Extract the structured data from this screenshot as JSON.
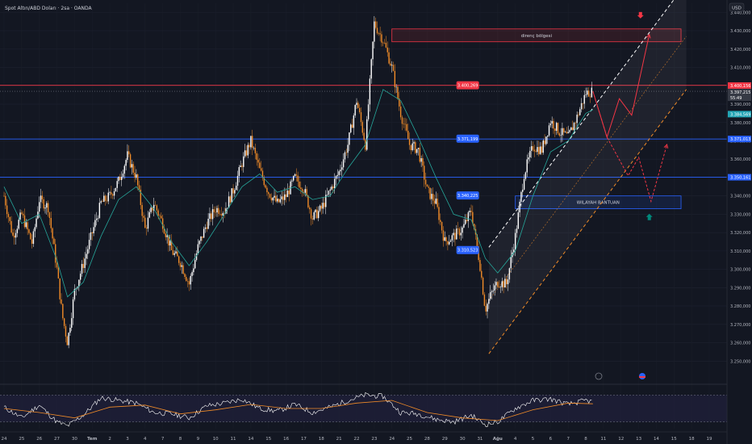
{
  "chart_data": {
    "type": "candlestick",
    "title": "Spot Altın/ABD Doları · 2sa · OANDA",
    "currency": "USD",
    "ylim": [
      3240,
      3445
    ],
    "y_ticks": [
      3250,
      3260,
      3270,
      3280,
      3290,
      3300,
      3310,
      3320,
      3330,
      3340,
      3350,
      3360,
      3370,
      3380,
      3390,
      3400,
      3410,
      3420,
      3430,
      3440
    ],
    "y_tick_labels": [
      "3.250,000",
      "3.260,000",
      "3.270,000",
      "3.280,000",
      "3.290,000",
      "3.300,000",
      "3.310,000",
      "3.320,000",
      "3.330,000",
      "3.340,000",
      "3.350,000",
      "3.360,000",
      "3.370,000",
      "3.380,000",
      "3.390,000",
      "3.400,000",
      "3.410,000",
      "3.420,000",
      "3.430,000",
      "3.440,000"
    ],
    "x_tick_labels": [
      "24",
      "25",
      "26",
      "27",
      "30",
      "Tem",
      "2",
      "3",
      "4",
      "7",
      "8",
      "9",
      "10",
      "11",
      "14",
      "15",
      "16",
      "17",
      "18",
      "21",
      "22",
      "23",
      "24",
      "25",
      "28",
      "29",
      "30",
      "31",
      "Ağu",
      "4",
      "5",
      "6",
      "7",
      "8",
      "11",
      "12",
      "13",
      "14",
      "15",
      "18",
      "19"
    ],
    "x_ticks_day_index": [
      0,
      1,
      2,
      3,
      4,
      5,
      6,
      7,
      8,
      9,
      10,
      11,
      12,
      13,
      14,
      15,
      16,
      17,
      18,
      19,
      20,
      21,
      22,
      23,
      24,
      25,
      26,
      27,
      28,
      29,
      30,
      31,
      32,
      33,
      34,
      35,
      36,
      37,
      38,
      39,
      40
    ],
    "last_real_day_index": 33.4,
    "price_path": [
      [
        0,
        3340
      ],
      [
        0.5,
        3318
      ],
      [
        1,
        3330
      ],
      [
        1.6,
        3314
      ],
      [
        2,
        3338
      ],
      [
        2.5,
        3334
      ],
      [
        3,
        3300
      ],
      [
        3.3,
        3275
      ],
      [
        3.6,
        3260
      ],
      [
        4,
        3288
      ],
      [
        4.5,
        3303
      ],
      [
        5,
        3320
      ],
      [
        5.5,
        3336
      ],
      [
        6,
        3340
      ],
      [
        6.5,
        3348
      ],
      [
        7,
        3362
      ],
      [
        7.5,
        3350
      ],
      [
        8,
        3322
      ],
      [
        8.5,
        3336
      ],
      [
        9,
        3325
      ],
      [
        9.5,
        3310
      ],
      [
        10,
        3304
      ],
      [
        10.5,
        3292
      ],
      [
        11,
        3312
      ],
      [
        11.5,
        3325
      ],
      [
        12,
        3333
      ],
      [
        12.5,
        3332
      ],
      [
        13,
        3343
      ],
      [
        13.5,
        3358
      ],
      [
        14,
        3370
      ],
      [
        14.5,
        3354
      ],
      [
        15,
        3342
      ],
      [
        15.5,
        3336
      ],
      [
        16,
        3340
      ],
      [
        16.5,
        3350
      ],
      [
        17,
        3344
      ],
      [
        17.5,
        3328
      ],
      [
        18,
        3333
      ],
      [
        18.5,
        3343
      ],
      [
        19,
        3353
      ],
      [
        19.5,
        3368
      ],
      [
        20,
        3392
      ],
      [
        20.5,
        3368
      ],
      [
        21,
        3434
      ],
      [
        21.5,
        3425
      ],
      [
        22,
        3410
      ],
      [
        22.5,
        3385
      ],
      [
        23,
        3368
      ],
      [
        23.5,
        3365
      ],
      [
        24,
        3343
      ],
      [
        24.5,
        3336
      ],
      [
        25,
        3315
      ],
      [
        25.5,
        3318
      ],
      [
        26,
        3322
      ],
      [
        26.5,
        3332
      ],
      [
        27,
        3302
      ],
      [
        27.3,
        3278
      ],
      [
        27.6,
        3286
      ],
      [
        28,
        3293
      ],
      [
        28.5,
        3292
      ],
      [
        29,
        3318
      ],
      [
        29.5,
        3352
      ],
      [
        30,
        3367
      ],
      [
        30.5,
        3365
      ],
      [
        31,
        3381
      ],
      [
        31.5,
        3375
      ],
      [
        32,
        3372
      ],
      [
        32.5,
        3383
      ],
      [
        33,
        3396
      ],
      [
        33.4,
        3397
      ]
    ],
    "ma_path": [
      [
        0,
        3345
      ],
      [
        1,
        3325
      ],
      [
        2,
        3330
      ],
      [
        3,
        3305
      ],
      [
        3.6,
        3285
      ],
      [
        4.5,
        3293
      ],
      [
        5.5,
        3318
      ],
      [
        6.5,
        3338
      ],
      [
        7.5,
        3345
      ],
      [
        8.5,
        3333
      ],
      [
        9.5,
        3315
      ],
      [
        10.5,
        3302
      ],
      [
        11.5,
        3315
      ],
      [
        12.5,
        3330
      ],
      [
        13.5,
        3345
      ],
      [
        14.5,
        3352
      ],
      [
        15.5,
        3342
      ],
      [
        16.5,
        3345
      ],
      [
        17.5,
        3338
      ],
      [
        18.5,
        3340
      ],
      [
        19.5,
        3355
      ],
      [
        20.5,
        3368
      ],
      [
        21.5,
        3398
      ],
      [
        22.5,
        3392
      ],
      [
        23.5,
        3372
      ],
      [
        24.5,
        3350
      ],
      [
        25.5,
        3330
      ],
      [
        26.5,
        3327
      ],
      [
        27.3,
        3306
      ],
      [
        28,
        3298
      ],
      [
        29,
        3310
      ],
      [
        30,
        3340
      ],
      [
        31,
        3364
      ],
      [
        32,
        3370
      ],
      [
        33,
        3385
      ],
      [
        33.4,
        3387
      ]
    ],
    "rsi": {
      "ylim": [
        20,
        80
      ],
      "y_ticks": [
        20,
        40,
        80
      ],
      "levels": [
        30,
        70
      ],
      "rsi_value": "59,80",
      "ma_value": "50,57",
      "path": [
        [
          0,
          52
        ],
        [
          1,
          36
        ],
        [
          2,
          55
        ],
        [
          3,
          30
        ],
        [
          3.6,
          24
        ],
        [
          4.5,
          40
        ],
        [
          5.5,
          66
        ],
        [
          6.5,
          62
        ],
        [
          7.5,
          58
        ],
        [
          8.5,
          44
        ],
        [
          9.5,
          42
        ],
        [
          10.5,
          36
        ],
        [
          11.5,
          54
        ],
        [
          12.5,
          58
        ],
        [
          13.5,
          64
        ],
        [
          14.5,
          50
        ],
        [
          15.5,
          46
        ],
        [
          16.5,
          56
        ],
        [
          17.5,
          44
        ],
        [
          18.5,
          52
        ],
        [
          19.5,
          62
        ],
        [
          20.5,
          70
        ],
        [
          21.5,
          68
        ],
        [
          22.5,
          44
        ],
        [
          23.5,
          42
        ],
        [
          24.5,
          34
        ],
        [
          25.5,
          30
        ],
        [
          26.5,
          40
        ],
        [
          27.3,
          26
        ],
        [
          28,
          30
        ],
        [
          29,
          50
        ],
        [
          30,
          62
        ],
        [
          31,
          64
        ],
        [
          32,
          56
        ],
        [
          33,
          62
        ],
        [
          33.4,
          60
        ]
      ],
      "ma_path": [
        [
          0,
          50
        ],
        [
          2,
          44
        ],
        [
          4,
          36
        ],
        [
          6,
          52
        ],
        [
          8,
          55
        ],
        [
          10,
          42
        ],
        [
          12,
          48
        ],
        [
          14,
          56
        ],
        [
          16,
          50
        ],
        [
          18,
          50
        ],
        [
          20,
          58
        ],
        [
          22,
          62
        ],
        [
          24,
          44
        ],
        [
          26,
          36
        ],
        [
          28,
          32
        ],
        [
          30,
          48
        ],
        [
          32,
          58
        ],
        [
          33.4,
          57
        ]
      ]
    },
    "horizontal_lines": [
      {
        "price": 3400.269,
        "color": "#f23645"
      },
      {
        "price": 3371.013,
        "color": "#2962ff"
      },
      {
        "price": 3350.161,
        "color": "#2962ff"
      }
    ],
    "level_labels": [
      {
        "text": "3.400,269",
        "price": 3400.269,
        "day": 26.3,
        "color": "#f23645"
      },
      {
        "text": "3.371,199",
        "price": 3371.199,
        "day": 26.3,
        "color": "#2962ff"
      },
      {
        "text": "3.340,225",
        "price": 3340.225,
        "day": 26.3,
        "color": "#2962ff"
      },
      {
        "text": "3.310,523",
        "price": 3310.523,
        "day": 26.3,
        "color": "#2962ff"
      }
    ],
    "zones": [
      {
        "label": "direnç bölgesi",
        "price_top": 3431,
        "price_bottom": 3424,
        "day_start": 22,
        "day_end": 38.4,
        "color": "#f23645"
      },
      {
        "label": "WILAYAH BANTUAN",
        "price_top": 3340,
        "price_bottom": 3333,
        "day_start": 29,
        "day_end": 38.4,
        "color": "#2962ff"
      }
    ],
    "channel": {
      "start_day": 27.5,
      "end_day": 38.7,
      "lower_start": 3254,
      "lower_end": 3398,
      "upper_start": 3312,
      "upper_end": 3456
    },
    "scenario_up": [
      [
        33.4,
        3397
      ],
      [
        34.2,
        3372
      ],
      [
        34.9,
        3393
      ],
      [
        35.6,
        3384
      ],
      [
        36.6,
        3428
      ]
    ],
    "scenario_down": [
      [
        33.4,
        3397
      ],
      [
        34.2,
        3372
      ],
      [
        35.4,
        3351
      ],
      [
        36,
        3361
      ],
      [
        36.7,
        3337
      ],
      [
        37.6,
        3368
      ]
    ],
    "price_badges": [
      {
        "text": "3.400,156",
        "price": 3400.156,
        "color": "#f23645"
      },
      {
        "text": "3.397,215",
        "price": 3396.5,
        "color": "#363a45"
      },
      {
        "text": "55:49",
        "price": 3393.5,
        "color": "#363a45"
      },
      {
        "text": "3.384,569",
        "price": 3384.569,
        "color": "#22a5b5"
      },
      {
        "text": "3.371,013",
        "price": 3371.013,
        "color": "#2962ff"
      },
      {
        "text": "3.350,161",
        "price": 3350.161,
        "color": "#2962ff"
      }
    ],
    "colors": {
      "background": "#131722",
      "candle_up": "#ffffff",
      "candle_down": "#f28c28",
      "ma": "#26a69a",
      "rsi": "#ffffff",
      "rsi_ma": "#f28c28",
      "channel": "#ffffff",
      "channel_lower": "#f28c28",
      "arrow_down": "#f23645",
      "arrow_up": "#00897b"
    }
  }
}
